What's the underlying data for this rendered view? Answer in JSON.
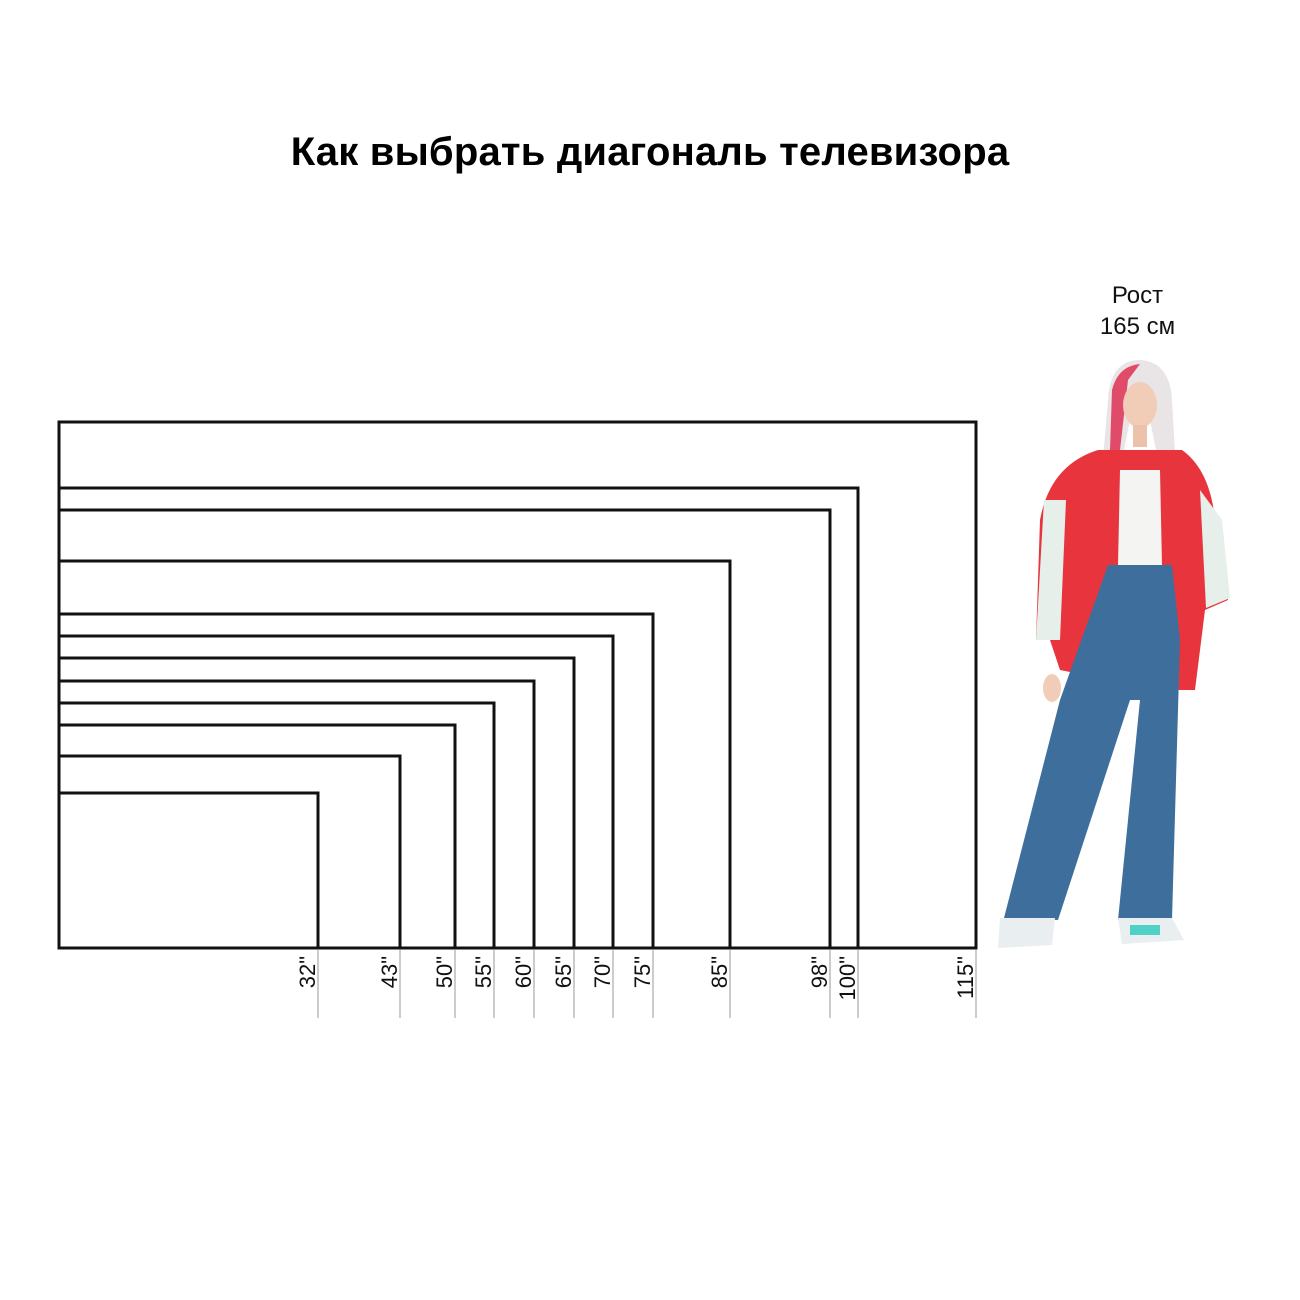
{
  "title": "Как выбрать диагональ телевизора",
  "person": {
    "height_line1": "Рост",
    "height_line2": "165 см"
  },
  "diagonals": [
    "32\"",
    "43\"",
    "50\"",
    "55\"",
    "60\"",
    "65\"",
    "70\"",
    "75\"",
    "85\"",
    "98\"",
    "100\"",
    "115\""
  ],
  "colors": {
    "frame": "#111111",
    "tick": "#9a9a9a",
    "jacket": "#e8343c",
    "jeans": "#3e6f9c"
  }
}
